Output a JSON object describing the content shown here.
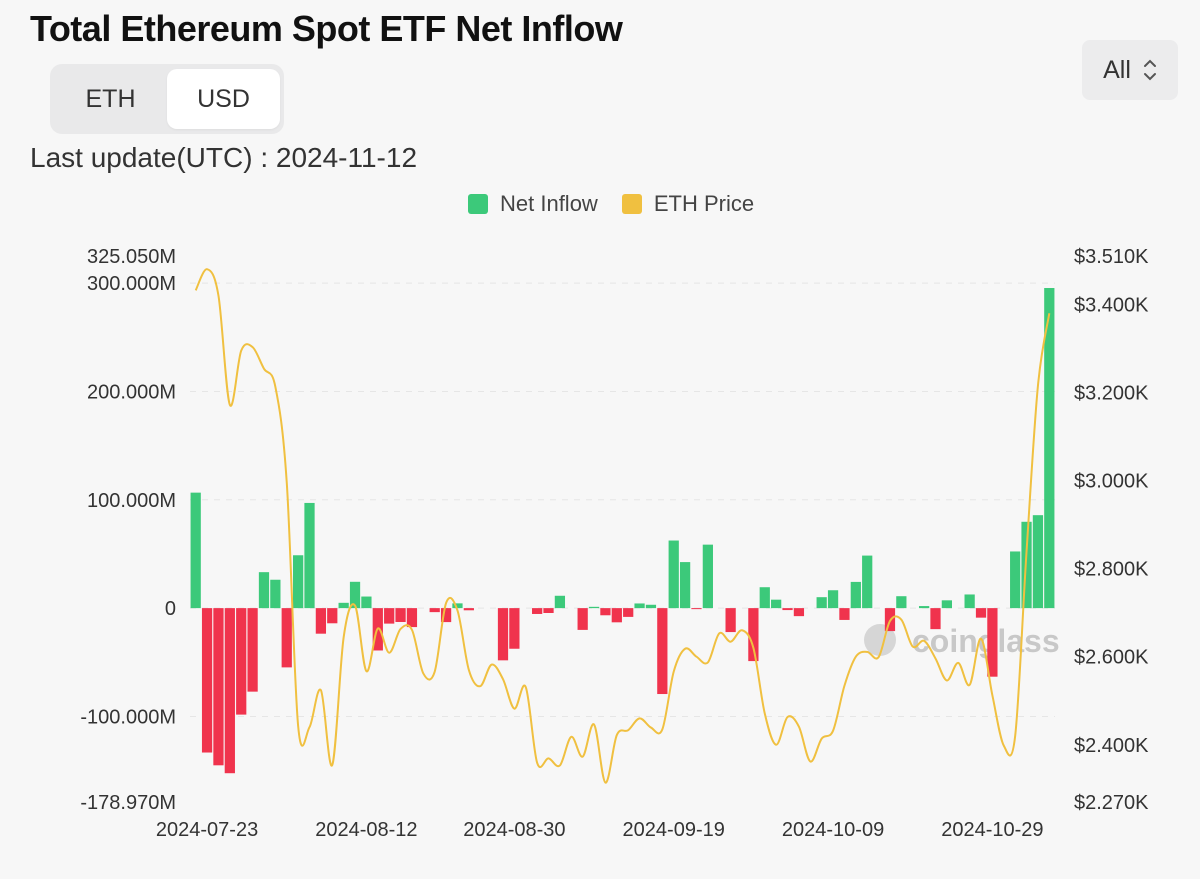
{
  "header": {
    "title": "Total Ethereum Spot ETF Net Inflow"
  },
  "toggle": {
    "eth_label": "ETH",
    "usd_label": "USD",
    "active": "USD"
  },
  "range": {
    "value": "All"
  },
  "update": {
    "text": "Last update(UTC) : 2024-11-12"
  },
  "watermark": "coinglass",
  "colors": {
    "positive": "#3cc97a",
    "negative": "#f0334d",
    "price": "#f0c040"
  },
  "chart_data": {
    "type": "bar+line",
    "title": "Total Ethereum Spot ETF Net Inflow",
    "legend": [
      "Net Inflow",
      "ETH Price"
    ],
    "legend_position": "top-center",
    "y_left": {
      "range": [
        -178.97,
        325.05
      ],
      "tick_values": [
        -178.97,
        -100,
        0,
        100,
        200,
        300,
        325.05
      ],
      "tick_labels": [
        "-178.970M",
        "-100.000M",
        "0",
        "100.000M",
        "200.000M",
        "300.000M",
        "325.050M"
      ],
      "unit": "USD millions"
    },
    "y_right": {
      "range": [
        2270,
        3510
      ],
      "tick_values": [
        2270,
        2400,
        2600,
        2800,
        3000,
        3200,
        3400,
        3510
      ],
      "tick_labels": [
        "$2.270K",
        "$2.400K",
        "$2.600K",
        "$2.800K",
        "$3.000K",
        "$3.200K",
        "$3.400K",
        "$3.510K"
      ],
      "unit": "USD"
    },
    "x_tick_labels": [
      "2024-07-23",
      "2024-08-12",
      "2024-08-30",
      "2024-09-19",
      "2024-10-09",
      "2024-10-29"
    ],
    "x_tick_index": [
      1,
      15,
      28,
      42,
      56,
      70
    ],
    "net_inflow": [
      106.6,
      -133.3,
      -145.1,
      -152.4,
      -98.3,
      -77.1,
      33.2,
      26.2,
      -54.7,
      48.8,
      97.1,
      -23.6,
      -14.0,
      4.9,
      24.3,
      10.7,
      -39.1,
      -14.3,
      -12.8,
      -17.5,
      0,
      -3.7,
      -12.9,
      4.4,
      -2.0,
      0,
      0,
      -48.2,
      -37.5,
      0,
      -5.4,
      -4.5,
      11.4,
      0,
      -20.1,
      1.2,
      -6.6,
      -13.1,
      -8.1,
      4.3,
      3.1,
      -79.3,
      62.4,
      42.5,
      -0.5,
      58.6,
      0,
      -22.1,
      0,
      -48.9,
      19.3,
      7.8,
      -1.8,
      -7.4,
      0,
      10.1,
      16.5,
      -10.9,
      24.2,
      48.5,
      0,
      -21.2,
      11.0,
      0,
      1.9,
      -19.4,
      7.2,
      0,
      12.6,
      -8.8,
      -63.3,
      0,
      52.3,
      79.7,
      85.8,
      295.5
    ],
    "eth_price": [
      3432,
      3480,
      3420,
      3172,
      3295,
      3303,
      3254,
      3213,
      2996,
      2443,
      2440,
      2524,
      2354,
      2644,
      2716,
      2567,
      2664,
      2609,
      2663,
      2661,
      2562,
      2566,
      2722,
      2705,
      2570,
      2533,
      2582,
      2549,
      2482,
      2531,
      2359,
      2369,
      2353,
      2418,
      2373,
      2446,
      2314,
      2422,
      2433,
      2460,
      2439,
      2435,
      2566,
      2618,
      2600,
      2587,
      2653,
      2634,
      2660,
      2620,
      2471,
      2400,
      2463,
      2441,
      2362,
      2414,
      2432,
      2534,
      2600,
      2611,
      2599,
      2681,
      2684,
      2623,
      2636,
      2596,
      2546,
      2586,
      2536,
      2641,
      2512,
      2398,
      2420,
      2839,
      3215,
      3380
    ]
  }
}
